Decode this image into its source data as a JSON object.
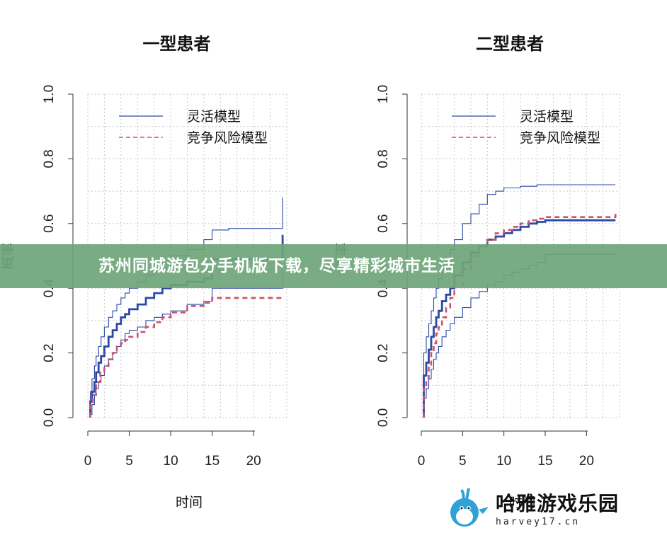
{
  "banner": {
    "text": "苏州同城游包分手机版下载，尽享精彩城市生活"
  },
  "watermark": {
    "brand": "哈雅游戏乐园",
    "sub": "harvey17.cn"
  },
  "colors": {
    "flexible": "#2b49a5",
    "competing": "#c9546b",
    "grid": "#c8c8c8",
    "banner": "#6ea578"
  },
  "chart_data": [
    {
      "type": "line",
      "title": "一型患者",
      "xlabel": "时间",
      "ylabel": "概率",
      "xlim": [
        0,
        24
      ],
      "ylim": [
        0,
        1
      ],
      "xticks": [
        0,
        5,
        10,
        15,
        20
      ],
      "yticks": [
        0.0,
        0.2,
        0.4,
        0.6,
        0.8,
        1.0
      ],
      "xtick_labels": [
        "0",
        "5",
        "10",
        "15",
        "20"
      ],
      "ytick_labels": [
        "0.0",
        "0.2",
        "0.4",
        "0.6",
        "0.8",
        "1.0"
      ],
      "grid": true,
      "legend_position": "top-right",
      "legend": [
        "灵活模型",
        "竞争风险模型"
      ],
      "series": [
        {
          "name": "灵活模型",
          "role": "estimate",
          "style": "solid-thick",
          "x": [
            0.3,
            0.5,
            0.8,
            1.0,
            1.3,
            1.6,
            2.0,
            2.5,
            3.0,
            3.5,
            4.0,
            4.5,
            5.0,
            6.0,
            7.0,
            8.0,
            9.0,
            10.0,
            12.0,
            14.0,
            15.0,
            17.0,
            19.0,
            21.0,
            23.0,
            23.5,
            23.5
          ],
          "y": [
            0.05,
            0.08,
            0.11,
            0.14,
            0.17,
            0.19,
            0.22,
            0.25,
            0.27,
            0.29,
            0.31,
            0.32,
            0.335,
            0.35,
            0.37,
            0.385,
            0.4,
            0.41,
            0.42,
            0.43,
            0.49,
            0.49,
            0.49,
            0.49,
            0.49,
            0.49,
            0.565
          ]
        },
        {
          "name": "灵活模型",
          "role": "upper",
          "style": "solid-thin",
          "x": [
            0.3,
            0.5,
            0.8,
            1.0,
            1.3,
            1.6,
            2.0,
            2.5,
            3.0,
            3.5,
            4.0,
            4.5,
            5.0,
            6.0,
            7.0,
            8.0,
            9.0,
            10.0,
            12.0,
            14.0,
            15.0,
            17.0,
            19.0,
            21.0,
            23.0,
            23.5,
            23.5
          ],
          "y": [
            0.08,
            0.12,
            0.16,
            0.19,
            0.22,
            0.25,
            0.28,
            0.31,
            0.33,
            0.35,
            0.37,
            0.385,
            0.4,
            0.42,
            0.44,
            0.46,
            0.48,
            0.5,
            0.52,
            0.55,
            0.58,
            0.585,
            0.585,
            0.585,
            0.585,
            0.585,
            0.68
          ]
        },
        {
          "name": "灵活模型",
          "role": "lower",
          "style": "solid-thin",
          "x": [
            0.3,
            0.5,
            0.8,
            1.0,
            1.3,
            1.6,
            2.0,
            2.5,
            3.0,
            3.5,
            4.0,
            4.5,
            5.0,
            6.0,
            7.0,
            8.0,
            9.0,
            10.0,
            12.0,
            14.0,
            15.0,
            17.0,
            19.0,
            21.0,
            23.0,
            23.5,
            23.5
          ],
          "y": [
            0.01,
            0.04,
            0.07,
            0.09,
            0.11,
            0.13,
            0.16,
            0.18,
            0.2,
            0.22,
            0.24,
            0.26,
            0.27,
            0.28,
            0.3,
            0.31,
            0.32,
            0.33,
            0.35,
            0.36,
            0.4,
            0.4,
            0.4,
            0.4,
            0.4,
            0.4,
            0.45
          ]
        },
        {
          "name": "竞争风险模型",
          "role": "estimate",
          "style": "dashed",
          "x": [
            0.3,
            0.6,
            1.0,
            1.5,
            2.0,
            2.5,
            3.0,
            3.5,
            4.0,
            4.5,
            5.0,
            6.0,
            7.0,
            8.0,
            9.0,
            10.0,
            12.0,
            14.0,
            15.0,
            17.0,
            20.0,
            23.0,
            23.5
          ],
          "y": [
            0.04,
            0.07,
            0.11,
            0.14,
            0.16,
            0.18,
            0.2,
            0.22,
            0.23,
            0.24,
            0.25,
            0.265,
            0.28,
            0.295,
            0.31,
            0.325,
            0.345,
            0.355,
            0.37,
            0.37,
            0.37,
            0.37,
            0.375
          ]
        }
      ]
    },
    {
      "type": "line",
      "title": "二型患者",
      "xlabel": "时间",
      "ylabel": "概率",
      "xlim": [
        0,
        24
      ],
      "ylim": [
        0,
        1
      ],
      "xticks": [
        0,
        5,
        10,
        15,
        20
      ],
      "yticks": [
        0.0,
        0.2,
        0.4,
        0.6,
        0.8,
        1.0
      ],
      "xtick_labels": [
        "0",
        "5",
        "10",
        "15",
        "20"
      ],
      "ytick_labels": [
        "0.0",
        "0.2",
        "0.4",
        "0.6",
        "0.8",
        "1.0"
      ],
      "grid": true,
      "legend_position": "top-right",
      "legend": [
        "灵活模型",
        "竞争风险模型"
      ],
      "series": [
        {
          "name": "灵活模型",
          "role": "estimate",
          "style": "solid-thick",
          "x": [
            0.3,
            0.6,
            0.9,
            1.2,
            1.5,
            1.8,
            2.1,
            2.5,
            3.0,
            3.5,
            4.0,
            5.0,
            6.0,
            7.0,
            8.0,
            9.0,
            10.0,
            11.0,
            12.0,
            13.0,
            14.0,
            15.0,
            17.0,
            20.0,
            23.5
          ],
          "y": [
            0.13,
            0.17,
            0.21,
            0.25,
            0.28,
            0.31,
            0.33,
            0.36,
            0.38,
            0.4,
            0.44,
            0.48,
            0.51,
            0.53,
            0.55,
            0.56,
            0.57,
            0.58,
            0.59,
            0.6,
            0.605,
            0.61,
            0.61,
            0.61,
            0.61
          ]
        },
        {
          "name": "灵活模型",
          "role": "upper",
          "style": "solid-thin",
          "x": [
            0.3,
            0.6,
            0.9,
            1.2,
            1.5,
            1.8,
            2.1,
            2.5,
            3.0,
            3.5,
            4.0,
            5.0,
            6.0,
            7.0,
            8.0,
            9.0,
            10.0,
            11.0,
            12.0,
            13.0,
            14.0,
            15.0,
            17.0,
            20.0,
            23.5
          ],
          "y": [
            0.2,
            0.25,
            0.29,
            0.33,
            0.37,
            0.4,
            0.43,
            0.46,
            0.49,
            0.52,
            0.55,
            0.6,
            0.63,
            0.66,
            0.69,
            0.7,
            0.71,
            0.71,
            0.715,
            0.715,
            0.72,
            0.72,
            0.72,
            0.72,
            0.72
          ]
        },
        {
          "name": "灵活模型",
          "role": "lower",
          "style": "solid-thin",
          "x": [
            0.3,
            0.6,
            0.9,
            1.2,
            1.5,
            1.8,
            2.1,
            2.5,
            3.0,
            3.5,
            4.0,
            5.0,
            6.0,
            7.0,
            8.0,
            9.0,
            10.0,
            11.0,
            12.0,
            13.0,
            14.0,
            15.0,
            17.0,
            20.0,
            23.5
          ],
          "y": [
            0.06,
            0.09,
            0.12,
            0.15,
            0.18,
            0.2,
            0.22,
            0.25,
            0.27,
            0.29,
            0.31,
            0.34,
            0.37,
            0.39,
            0.41,
            0.42,
            0.44,
            0.45,
            0.46,
            0.47,
            0.48,
            0.505,
            0.505,
            0.505,
            0.505
          ]
        },
        {
          "name": "竞争风险模型",
          "role": "estimate",
          "style": "dashed",
          "x": [
            0.3,
            0.6,
            0.9,
            1.2,
            1.5,
            1.8,
            2.1,
            2.5,
            3.0,
            3.5,
            4.0,
            5.0,
            6.0,
            7.0,
            8.0,
            9.0,
            10.0,
            11.0,
            12.0,
            13.0,
            14.0,
            15.0,
            17.0,
            20.0,
            23.5
          ],
          "y": [
            0.09,
            0.12,
            0.16,
            0.2,
            0.23,
            0.26,
            0.28,
            0.31,
            0.34,
            0.37,
            0.41,
            0.46,
            0.5,
            0.53,
            0.55,
            0.57,
            0.58,
            0.59,
            0.6,
            0.61,
            0.615,
            0.62,
            0.62,
            0.62,
            0.63
          ]
        }
      ]
    }
  ]
}
